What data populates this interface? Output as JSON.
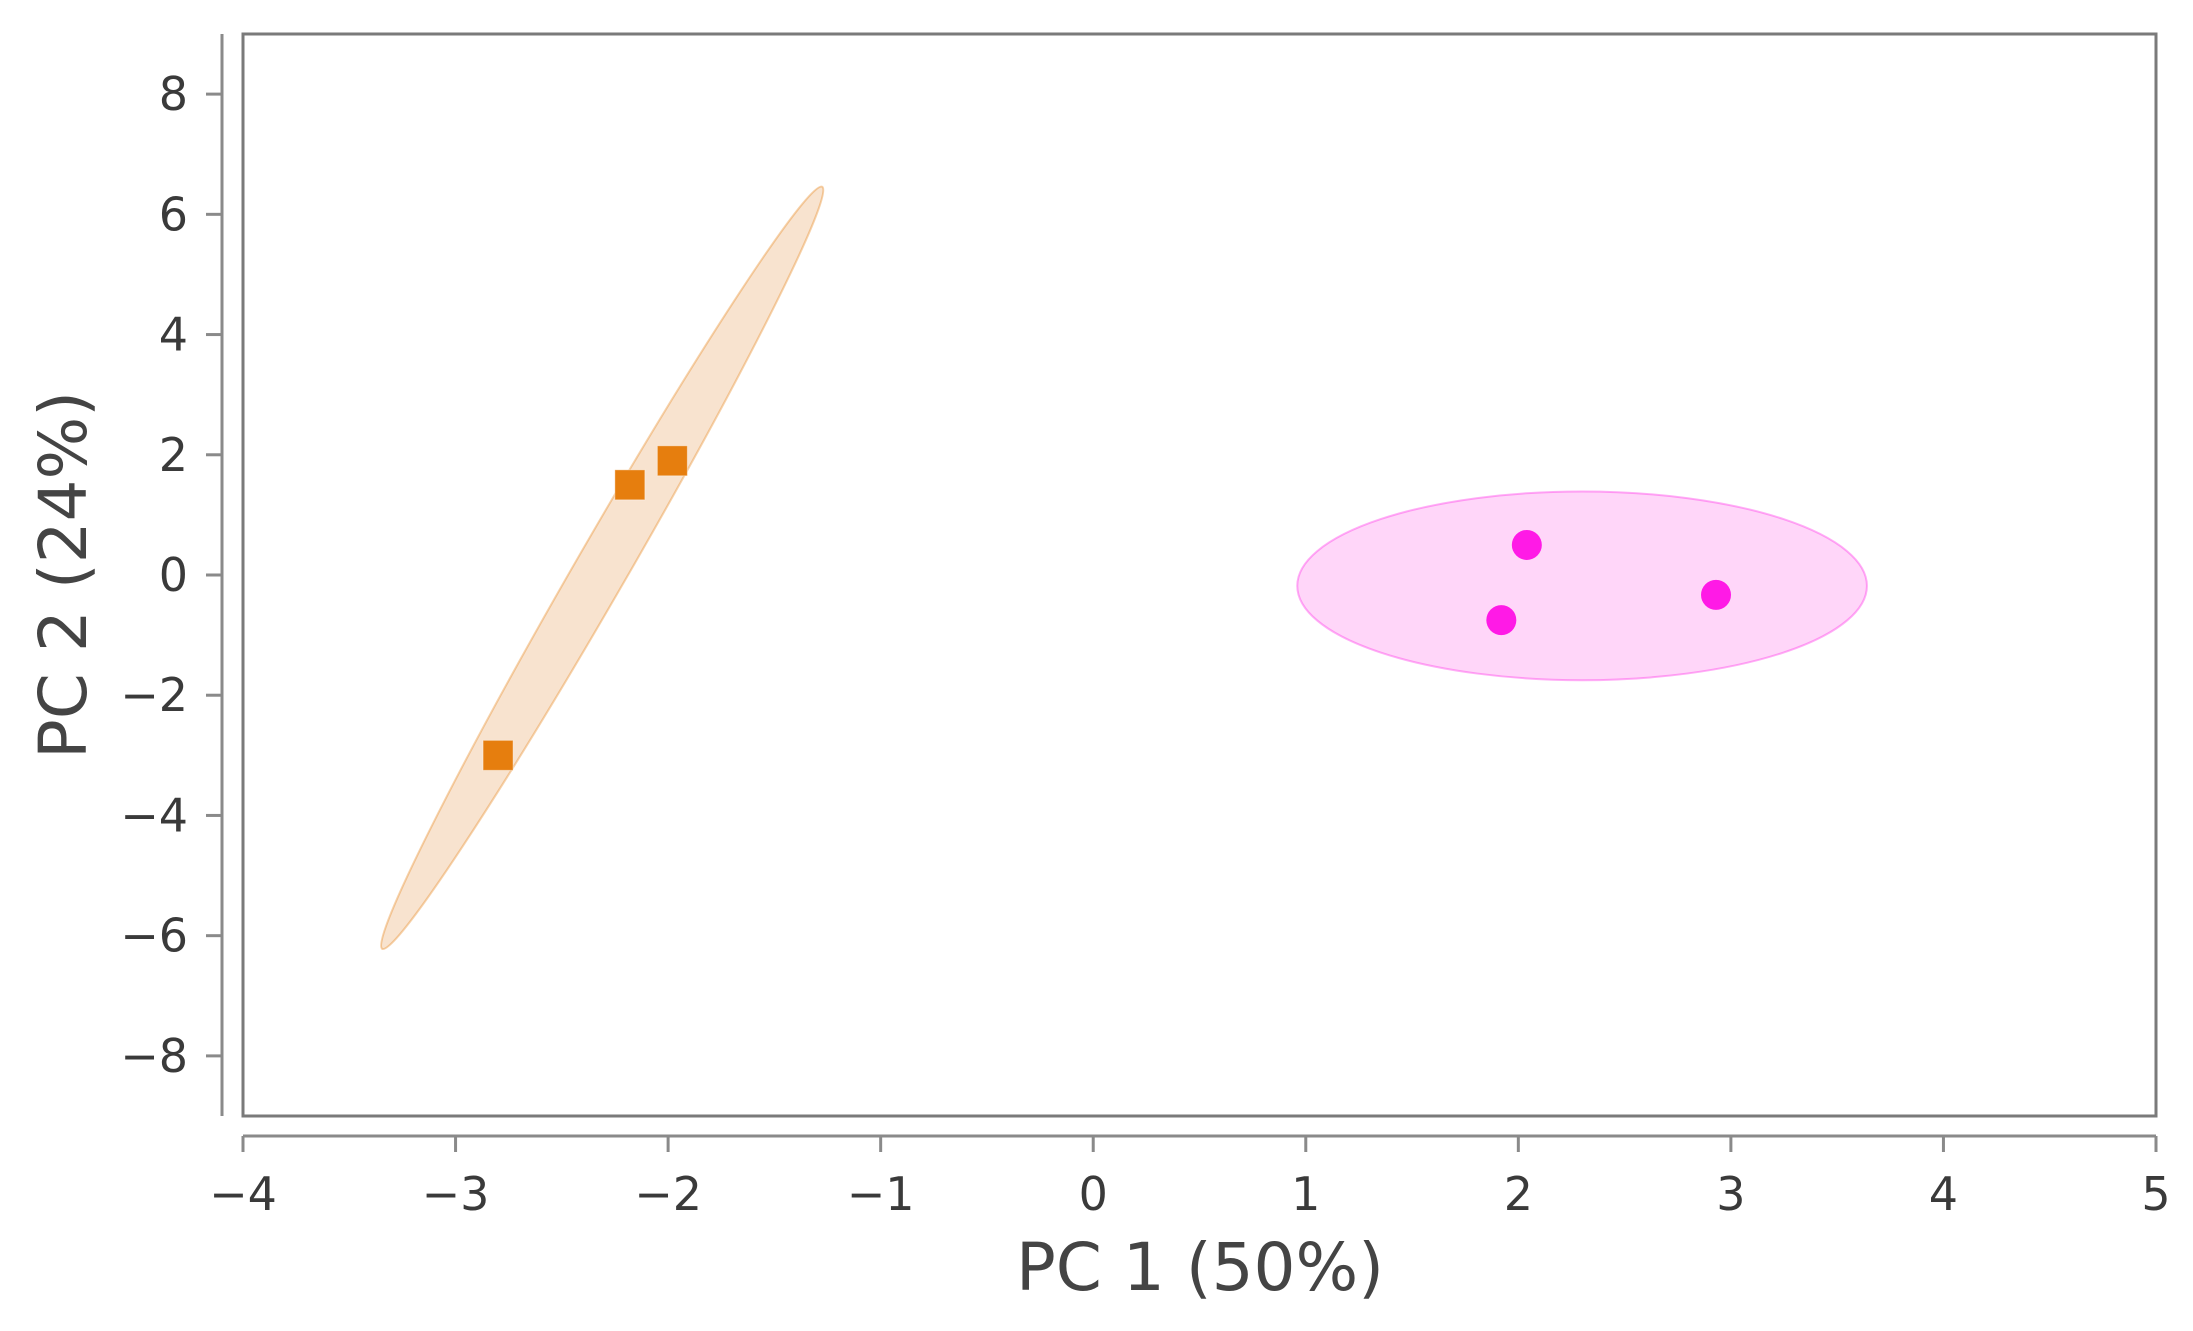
{
  "chart_data": {
    "type": "scatter",
    "title": "",
    "xlabel": "PC 1 (50%)",
    "ylabel": "PC 2 (24%)",
    "xlim": [
      -4,
      5
    ],
    "ylim": [
      -9,
      9
    ],
    "xticks": [
      -4,
      -3,
      -2,
      -1,
      0,
      1,
      2,
      3,
      4,
      5
    ],
    "yticks": [
      8,
      6,
      4,
      2,
      0,
      -2,
      -4,
      -6,
      -8
    ],
    "xtick_labels": [
      "−4",
      "−3",
      "−2",
      "−1",
      "0",
      "1",
      "2",
      "3",
      "4",
      "5"
    ],
    "ytick_labels": [
      "8",
      "6",
      "4",
      "2",
      "0",
      "−2",
      "−4",
      "−6",
      "−8"
    ],
    "grid": false,
    "legend": "none",
    "series": [
      {
        "marker": "square",
        "color": "#E67E0E",
        "ellipse_color": "#F8E3CF",
        "points": [
          {
            "x": -2.18,
            "y": 1.5
          },
          {
            "x": -1.98,
            "y": 1.9
          },
          {
            "x": -2.8,
            "y": -3.0
          }
        ],
        "ellipse": {
          "cx": -2.31,
          "cy": 0.12,
          "rx_data": 3.6,
          "ry_data": 0.23,
          "angle_deg_screen": -60
        }
      },
      {
        "marker": "circle",
        "color": "#FF1AE6",
        "ellipse_color": "#FFD6F9",
        "points": [
          {
            "x": 2.04,
            "y": 0.5
          },
          {
            "x": 1.92,
            "y": -0.75
          },
          {
            "x": 2.93,
            "y": -0.33
          }
        ],
        "ellipse": {
          "cx": 2.3,
          "cy": -0.18,
          "rx_data": 1.34,
          "ry_data": 1.57,
          "angle_deg_screen": 0
        }
      }
    ]
  }
}
